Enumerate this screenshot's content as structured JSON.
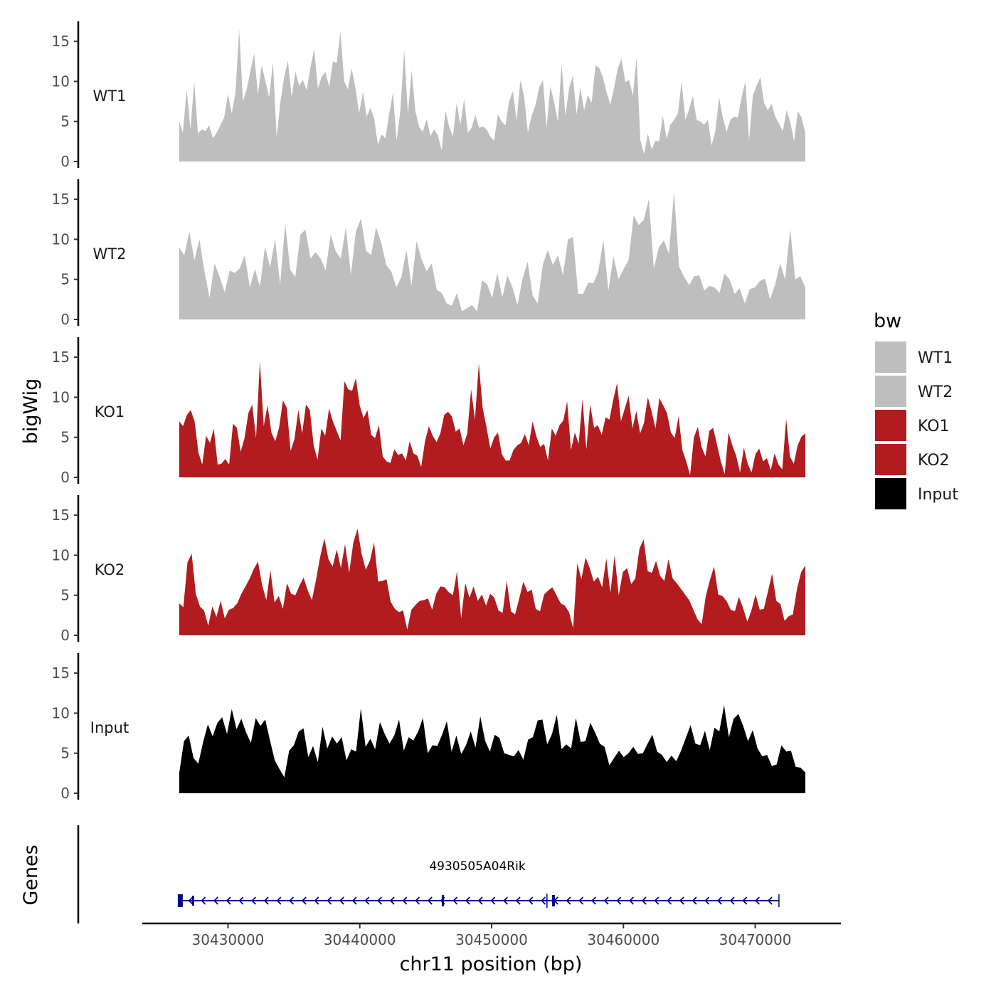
{
  "chart_data": {
    "type": "area",
    "xlabel": "chr11 position (bp)",
    "x_ticks": [
      30430000,
      30440000,
      30450000,
      30460000,
      30470000
    ],
    "xlim": [
      30423500,
      30476500
    ],
    "ylabel": "bigWig",
    "y_ticks": [
      0,
      5,
      10,
      15
    ],
    "ylim": [
      0,
      17.5
    ],
    "region": [
      30426300,
      30473800
    ],
    "legend": {
      "title": "bw",
      "position": "right",
      "entries": [
        {
          "label": "WT1",
          "color": "#bebebe"
        },
        {
          "label": "WT2",
          "color": "#bebebe"
        },
        {
          "label": "KO1",
          "color": "#b21c1e"
        },
        {
          "label": "KO2",
          "color": "#b21c1e"
        },
        {
          "label": "Input",
          "color": "#000000"
        }
      ]
    },
    "series": [
      {
        "name": "WT1",
        "color": "#bebebe",
        "values": [
          5.0,
          3.6,
          9.0,
          4.0,
          10.0,
          3.5,
          4.0,
          3.8,
          4.5,
          2.9,
          3.6,
          4.5,
          5.5,
          8.4,
          6.0,
          8.5,
          16.5,
          7.5,
          9.0,
          11.3,
          13.5,
          8.4,
          12.0,
          10.0,
          8.0,
          12.4,
          3.0,
          7.5,
          10.5,
          12.6,
          8.0,
          11.2,
          9.5,
          10.2,
          8.9,
          11.7,
          14.0,
          9.1,
          10.6,
          11.2,
          9.3,
          12.5,
          12.3,
          16.2,
          10.0,
          9.0,
          11.6,
          9.2,
          6.0,
          8.7,
          5.6,
          6.7,
          5.4,
          2.1,
          3.4,
          2.9,
          5.9,
          8.6,
          2.6,
          6.4,
          14.0,
          6.0,
          11.4,
          6.3,
          4.3,
          3.7,
          5.3,
          3.2,
          4.0,
          3.3,
          1.4,
          6.4,
          4.4,
          3.1,
          7.3,
          4.6,
          7.8,
          3.6,
          4.2,
          5.8,
          4.2,
          4.4,
          4.0,
          3.1,
          2.6,
          5.9,
          5.0,
          4.5,
          7.5,
          8.8,
          5.1,
          10.2,
          8.1,
          3.6,
          5.7,
          7.0,
          9.2,
          10.2,
          4.2,
          9.4,
          7.4,
          5.0,
          12.2,
          5.7,
          9.2,
          10.7,
          5.9,
          9.2,
          6.4,
          8.3,
          7.3,
          12.0,
          11.7,
          10.5,
          8.6,
          7.1,
          9.2,
          11.7,
          12.8,
          9.9,
          10.2,
          8.2,
          13.0,
          2.7,
          0.9,
          3.5,
          1.5,
          2.6,
          2.5,
          5.7,
          2.8,
          4.6,
          5.2,
          6.0,
          10.0,
          5.2,
          6.5,
          8.2,
          5.2,
          5.0,
          4.6,
          5.2,
          2.0,
          3.8,
          8.0,
          5.5,
          3.7,
          5.2,
          5.6,
          5.5,
          8.0,
          10.0,
          2.6,
          8.2,
          9.5,
          10.5,
          7.3,
          6.4,
          7.2,
          5.6,
          4.7,
          3.8,
          6.4,
          4.9,
          2.5,
          6.3,
          5.5,
          3.5
        ]
      },
      {
        "name": "WT2",
        "color": "#bebebe",
        "values": [
          9.0,
          8.0,
          11.0,
          7.4,
          10.0,
          6.0,
          2.7,
          7.0,
          5.3,
          3.4,
          6.1,
          5.8,
          6.4,
          8.0,
          4.0,
          6.3,
          4.1,
          9.1,
          6.5,
          10.0,
          4.4,
          12.0,
          6.2,
          5.3,
          10.6,
          11.2,
          7.6,
          8.4,
          7.6,
          6.1,
          10.6,
          8.5,
          7.6,
          11.5,
          5.6,
          11.0,
          12.6,
          8.6,
          8.0,
          11.5,
          9.6,
          6.8,
          6.0,
          4.0,
          5.3,
          8.7,
          4.2,
          9.8,
          7.5,
          6.0,
          7.0,
          3.7,
          3.3,
          2.0,
          1.7,
          3.3,
          1.0,
          1.4,
          1.8,
          1.0,
          4.9,
          4.4,
          2.7,
          5.8,
          2.8,
          5.5,
          4.0,
          1.8,
          5.1,
          7.2,
          3.0,
          2.0,
          6.8,
          8.7,
          6.8,
          8.0,
          5.5,
          10.0,
          10.3,
          3.2,
          3.2,
          4.6,
          4.5,
          6.0,
          9.9,
          3.6,
          7.9,
          5.0,
          6.3,
          7.4,
          13.0,
          11.8,
          12.4,
          15.0,
          6.4,
          9.0,
          9.9,
          8.2,
          15.9,
          6.6,
          5.3,
          4.3,
          5.4,
          5.5,
          3.6,
          4.2,
          4.0,
          3.3,
          5.7,
          5.0,
          3.2,
          3.9,
          2.0,
          3.8,
          4.0,
          4.8,
          5.1,
          2.5,
          4.3,
          7.0,
          5.0,
          11.3,
          5.0,
          5.4,
          4.0
        ]
      },
      {
        "name": "KO1",
        "color": "#b21c1e",
        "values": [
          7.0,
          6.4,
          7.8,
          8.4,
          7.0,
          3.1,
          1.6,
          5.2,
          4.3,
          6.1,
          1.6,
          1.7,
          2.3,
          1.6,
          6.7,
          6.2,
          3.2,
          4.9,
          8.0,
          9.1,
          4.9,
          14.5,
          6.4,
          9.0,
          5.6,
          4.5,
          6.2,
          9.6,
          8.7,
          3.3,
          4.8,
          8.4,
          5.5,
          9.1,
          8.4,
          4.0,
          2.2,
          6.1,
          5.2,
          8.6,
          7.0,
          5.8,
          4.6,
          12.0,
          11.0,
          10.8,
          12.4,
          9.0,
          7.4,
          8.4,
          5.3,
          4.9,
          6.5,
          2.6,
          2.0,
          1.8,
          3.5,
          2.8,
          3.0,
          2.1,
          4.5,
          3.0,
          2.7,
          1.3,
          4.5,
          6.4,
          5.2,
          4.4,
          5.5,
          7.8,
          8.2,
          7.6,
          5.7,
          6.1,
          4.0,
          5.5,
          11.0,
          7.2,
          14.2,
          8.7,
          6.3,
          3.6,
          5.0,
          5.6,
          2.9,
          2.1,
          2.1,
          3.4,
          4.0,
          4.3,
          5.4,
          4.0,
          7.0,
          5.1,
          3.8,
          4.2,
          2.1,
          6.1,
          5.2,
          6.5,
          7.1,
          9.5,
          3.4,
          5.6,
          4.2,
          9.8,
          3.5,
          9.1,
          6.2,
          6.5,
          5.3,
          7.5,
          7.2,
          9.7,
          11.8,
          7.0,
          8.6,
          10.2,
          6.1,
          8.3,
          5.5,
          6.8,
          10.0,
          8.2,
          6.1,
          9.9,
          9.0,
          8.0,
          5.6,
          4.9,
          7.6,
          3.4,
          2.0,
          0.3,
          5.0,
          6.3,
          3.8,
          2.6,
          5.8,
          6.2,
          4.1,
          2.0,
          0.4,
          5.6,
          4.0,
          2.7,
          0.6,
          3.7,
          1.7,
          0.6,
          2.9,
          3.6,
          2.0,
          2.4,
          0.9,
          3.0,
          1.6,
          1.0,
          7.3,
          2.6,
          1.7,
          4.0,
          5.1,
          5.5
        ]
      },
      {
        "name": "KO2",
        "color": "#b21c1e",
        "values": [
          4.0,
          3.5,
          9.1,
          10.2,
          5.2,
          3.6,
          3.1,
          1.2,
          3.6,
          2.3,
          4.3,
          2.1,
          3.2,
          3.4,
          4.0,
          5.2,
          6.1,
          7.1,
          8.3,
          9.2,
          6.3,
          4.4,
          8.1,
          4.1,
          4.9,
          3.3,
          6.5,
          5.2,
          5.0,
          6.2,
          7.2,
          5.6,
          4.4,
          6.9,
          9.8,
          12.1,
          9.5,
          8.6,
          10.7,
          8.4,
          11.4,
          7.8,
          11.6,
          13.3,
          10.2,
          8.2,
          9.3,
          11.6,
          6.7,
          6.8,
          7.0,
          4.2,
          3.3,
          2.9,
          3.1,
          0.7,
          3.2,
          3.8,
          4.3,
          4.4,
          4.6,
          3.2,
          5.2,
          6.1,
          6.0,
          5.4,
          5.0,
          8.0,
          2.1,
          6.5,
          4.7,
          6.1,
          4.3,
          5.1,
          3.7,
          5.2,
          4.7,
          3.1,
          2.8,
          6.8,
          3.0,
          2.6,
          4.6,
          6.7,
          5.4,
          5.7,
          3.3,
          3.0,
          5.1,
          5.6,
          6.0,
          5.0,
          4.0,
          3.7,
          2.9,
          0.9,
          9.0,
          7.0,
          9.7,
          8.4,
          6.7,
          7.3,
          6.0,
          9.6,
          5.3,
          10.0,
          5.0,
          7.9,
          8.4,
          6.4,
          7.1,
          10.8,
          12.0,
          8.0,
          7.8,
          9.3,
          7.4,
          6.8,
          9.5,
          7.1,
          6.5,
          5.8,
          5.1,
          4.4,
          3.2,
          2.0,
          1.4,
          4.9,
          6.9,
          8.6,
          5.1,
          4.9,
          4.3,
          3.2,
          3.0,
          4.8,
          3.4,
          1.7,
          3.1,
          5.1,
          3.2,
          3.3,
          5.5,
          7.7,
          4.3,
          3.9,
          1.8,
          2.4,
          2.6,
          5.8,
          7.9,
          8.7
        ]
      },
      {
        "name": "Input",
        "color": "#000000",
        "values": [
          2.5,
          6.5,
          7.2,
          4.4,
          3.7,
          6.4,
          8.6,
          7.1,
          8.8,
          9.5,
          7.4,
          10.5,
          8.0,
          9.3,
          7.6,
          6.3,
          9.4,
          8.4,
          9.2,
          6.6,
          4.1,
          3.0,
          2.0,
          5.3,
          6.0,
          7.7,
          8.1,
          4.5,
          5.9,
          3.9,
          8.3,
          5.6,
          7.1,
          6.2,
          7.0,
          4.1,
          5.5,
          5.2,
          10.6,
          5.8,
          6.8,
          5.5,
          8.9,
          7.4,
          6.2,
          7.2,
          9.2,
          5.3,
          7.0,
          6.6,
          7.7,
          9.4,
          5.0,
          6.0,
          5.9,
          7.3,
          9.0,
          5.2,
          7.2,
          4.9,
          6.0,
          7.7,
          5.7,
          9.6,
          6.6,
          5.2,
          7.3,
          6.9,
          5.0,
          4.8,
          4.6,
          5.4,
          4.2,
          6.7,
          7.0,
          9.1,
          9.2,
          6.1,
          7.4,
          9.8,
          5.5,
          6.1,
          5.6,
          9.4,
          6.4,
          6.5,
          8.8,
          7.6,
          6.2,
          5.8,
          3.5,
          4.4,
          5.3,
          4.5,
          5.0,
          5.8,
          4.9,
          5.0,
          6.2,
          7.3,
          5.2,
          4.8,
          3.9,
          4.7,
          4.0,
          5.3,
          6.9,
          8.5,
          6.2,
          6.0,
          7.8,
          5.4,
          8.2,
          7.7,
          11.0,
          7.0,
          9.3,
          9.9,
          8.4,
          6.5,
          7.9,
          5.6,
          4.6,
          4.8,
          3.4,
          3.6,
          6.0,
          5.2,
          5.3,
          3.3,
          3.2,
          2.6
        ]
      }
    ],
    "genes": {
      "panel_label": "Genes",
      "name": "4930505A04Rik",
      "start": 30426300,
      "end": 30471800,
      "strand": "-",
      "color": "#00008b"
    }
  }
}
